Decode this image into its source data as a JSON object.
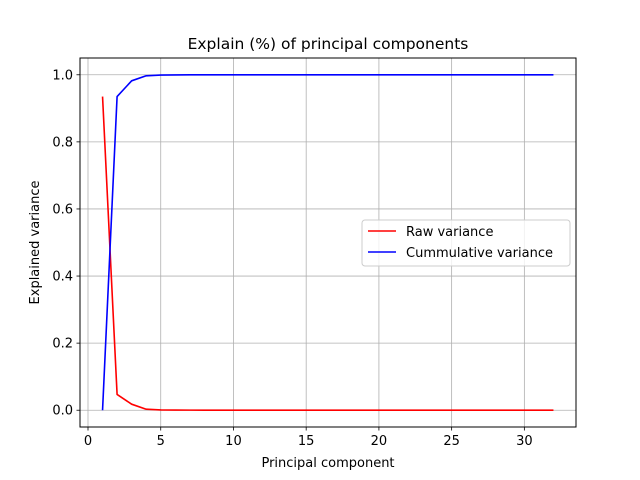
{
  "chart_data": {
    "type": "line",
    "title": "Explain (%) of principal components",
    "xlabel": "Principal component",
    "ylabel": "Explained variance",
    "xlim": [
      -0.55,
      33.55
    ],
    "ylim": [
      -0.05,
      1.05
    ],
    "xticks": [
      0,
      5,
      10,
      15,
      20,
      25,
      30
    ],
    "yticks": [
      0.0,
      0.2,
      0.4,
      0.6,
      0.8,
      1.0
    ],
    "xtick_labels": [
      "0",
      "5",
      "10",
      "15",
      "20",
      "25",
      "30"
    ],
    "ytick_labels": [
      "0.0",
      "0.2",
      "0.4",
      "0.6",
      "0.8",
      "1.0"
    ],
    "grid": true,
    "legend_position": "center-right",
    "x": [
      1,
      2,
      3,
      4,
      5,
      6,
      7,
      8,
      9,
      10,
      11,
      12,
      13,
      14,
      15,
      16,
      17,
      18,
      19,
      20,
      21,
      22,
      23,
      24,
      25,
      26,
      27,
      28,
      29,
      30,
      31,
      32
    ],
    "series": [
      {
        "name": "Raw variance",
        "color": "#ff0000",
        "values": [
          0.935,
          0.047,
          0.018,
          0.003,
          0.001,
          0.0005,
          0.0003,
          0.0002,
          0.0001,
          0.0001,
          0,
          0,
          0,
          0,
          0,
          0,
          0,
          0,
          0,
          0,
          0,
          0,
          0,
          0,
          0,
          0,
          0,
          0,
          0,
          0,
          0,
          0
        ]
      },
      {
        "name": "Cummulative variance",
        "color": "#0000ff",
        "values": [
          0.0,
          0.935,
          0.982,
          0.997,
          0.999,
          0.9995,
          0.9998,
          0.9999,
          1.0,
          1.0,
          1.0,
          1.0,
          1.0,
          1.0,
          1.0,
          1.0,
          1.0,
          1.0,
          1.0,
          1.0,
          1.0,
          1.0,
          1.0,
          1.0,
          1.0,
          1.0,
          1.0,
          1.0,
          1.0,
          1.0,
          1.0,
          1.0
        ]
      }
    ]
  }
}
